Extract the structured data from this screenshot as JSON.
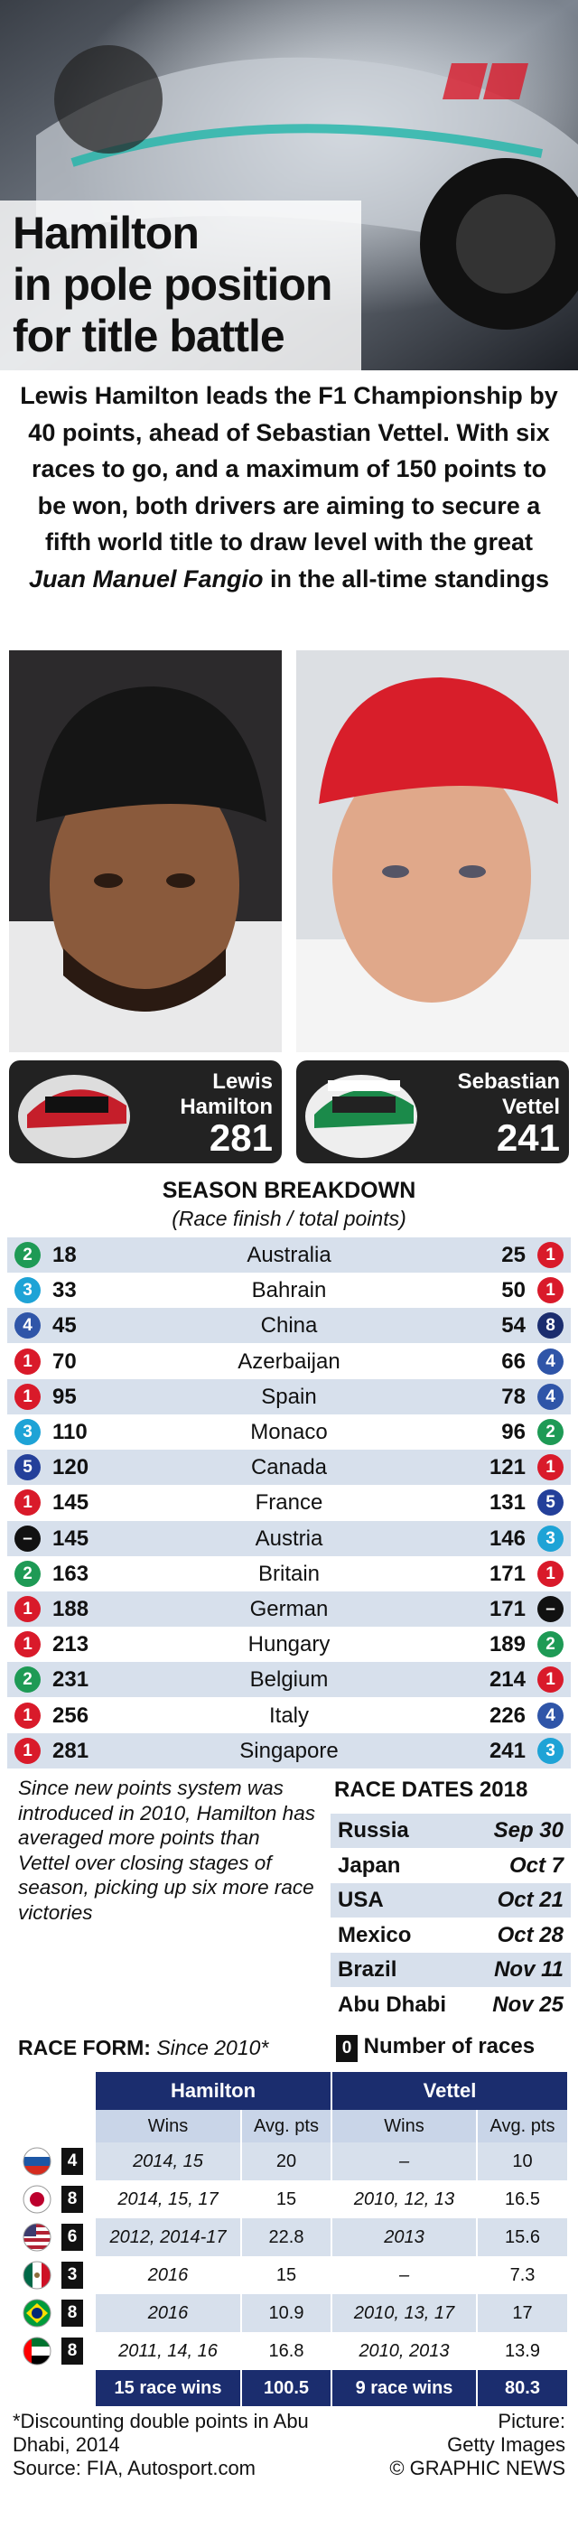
{
  "header": {
    "title_lines": [
      "Hamilton",
      "in pole position",
      "for title battle"
    ]
  },
  "intro": {
    "text": "Lewis Hamilton leads the F1 Championship by 40 points, ahead of Sebastian Vettel. With six races to go, and a maximum of 150 points to be won, both drivers are aiming to secure a fifth world title to draw level with the great",
    "emphasis": "Juan Manuel Fangio",
    "text_end": "in the all-time standings"
  },
  "drivers": [
    {
      "first": "Lewis",
      "last": "Hamilton",
      "points": 281
    },
    {
      "first": "Sebastian",
      "last": "Vettel",
      "points": 241
    }
  ],
  "season_breakdown": {
    "title": "SEASON BREAKDOWN",
    "subtitle": "(Race finish / total points)",
    "position_colors": {
      "1": "#d91a2a",
      "2": "#1e9a55",
      "3": "#1ea3d6",
      "4": "#2f55a8",
      "5": "#24409a",
      "8": "#1b2d6e",
      "–": "#111111"
    },
    "rows": [
      {
        "hamilton_finish": 2,
        "hamilton_points": 18,
        "race": "Australia",
        "vettel_points": 25,
        "vettel_finish": 1
      },
      {
        "hamilton_finish": 3,
        "hamilton_points": 33,
        "race": "Bahrain",
        "vettel_points": 50,
        "vettel_finish": 1
      },
      {
        "hamilton_finish": 4,
        "hamilton_points": 45,
        "race": "China",
        "vettel_points": 54,
        "vettel_finish": 8
      },
      {
        "hamilton_finish": 1,
        "hamilton_points": 70,
        "race": "Azerbaijan",
        "vettel_points": 66,
        "vettel_finish": 4
      },
      {
        "hamilton_finish": 1,
        "hamilton_points": 95,
        "race": "Spain",
        "vettel_points": 78,
        "vettel_finish": 4
      },
      {
        "hamilton_finish": 3,
        "hamilton_points": 110,
        "race": "Monaco",
        "vettel_points": 96,
        "vettel_finish": 2
      },
      {
        "hamilton_finish": 5,
        "hamilton_points": 120,
        "race": "Canada",
        "vettel_points": 121,
        "vettel_finish": 1
      },
      {
        "hamilton_finish": 1,
        "hamilton_points": 145,
        "race": "France",
        "vettel_points": 131,
        "vettel_finish": 5
      },
      {
        "hamilton_finish": "–",
        "hamilton_points": 145,
        "race": "Austria",
        "vettel_points": 146,
        "vettel_finish": 3
      },
      {
        "hamilton_finish": 2,
        "hamilton_points": 163,
        "race": "Britain",
        "vettel_points": 171,
        "vettel_finish": 1
      },
      {
        "hamilton_finish": 1,
        "hamilton_points": 188,
        "race": "German",
        "vettel_points": 171,
        "vettel_finish": "–"
      },
      {
        "hamilton_finish": 1,
        "hamilton_points": 213,
        "race": "Hungary",
        "vettel_points": 189,
        "vettel_finish": 2
      },
      {
        "hamilton_finish": 2,
        "hamilton_points": 231,
        "race": "Belgium",
        "vettel_points": 214,
        "vettel_finish": 1
      },
      {
        "hamilton_finish": 1,
        "hamilton_points": 256,
        "race": "Italy",
        "vettel_points": 226,
        "vettel_finish": 4
      },
      {
        "hamilton_finish": 1,
        "hamilton_points": 281,
        "race": "Singapore",
        "vettel_points": 241,
        "vettel_finish": 3
      }
    ]
  },
  "note": "Since new points system was introduced in 2010, Hamilton has averaged more points than Vettel over closing stages of season, picking up six more race victories",
  "race_dates": {
    "title": "RACE DATES 2018",
    "rows": [
      [
        "Russia",
        "Sep 30"
      ],
      [
        "Japan",
        "Oct 7"
      ],
      [
        "USA",
        "Oct 21"
      ],
      [
        "Mexico",
        "Oct 28"
      ],
      [
        "Brazil",
        "Nov 11"
      ],
      [
        "Abu Dhabi",
        "Nov 25"
      ]
    ]
  },
  "race_form": {
    "title": "RACE FORM:",
    "subtitle": "Since 2010*",
    "legend_sample": 0,
    "legend_label": "Number of races",
    "drivers": [
      "Hamilton",
      "Vettel"
    ],
    "columns": [
      "Wins",
      "Avg. pts",
      "Wins",
      "Avg. pts"
    ],
    "rows": [
      {
        "races": 4,
        "hamilton_wins": "2014, 15",
        "hamilton_avg": 20,
        "vettel_wins": "–",
        "vettel_avg": 10
      },
      {
        "races": 8,
        "hamilton_wins": "2014, 15, 17",
        "hamilton_avg": 15,
        "vettel_wins": "2010, 12, 13",
        "vettel_avg": 16.5
      },
      {
        "races": 6,
        "hamilton_wins": "2012, 2014-17",
        "hamilton_avg": 22.8,
        "vettel_wins": "2013",
        "vettel_avg": 15.6
      },
      {
        "races": 3,
        "hamilton_wins": "2016",
        "hamilton_avg": 15,
        "vettel_wins": "–",
        "vettel_avg": 7.3
      },
      {
        "races": 8,
        "hamilton_wins": "2016",
        "hamilton_avg": 10.9,
        "vettel_wins": "2010, 13, 17",
        "vettel_avg": 17
      },
      {
        "races": 8,
        "hamilton_wins": "2011, 14, 16",
        "hamilton_avg": 16.8,
        "vettel_wins": "2010, 2013",
        "vettel_avg": 13.9
      }
    ],
    "totals": {
      "hamilton_wins": "15 race wins",
      "hamilton_avg": 100.5,
      "vettel_wins": "9 race wins",
      "vettel_avg": 80.3
    }
  },
  "footer": {
    "footnote": "*Discounting double points in Abu Dhabi, 2014",
    "source": "Source: FIA, Autosport.com",
    "credit_label": "Picture:",
    "credit": "Getty Images",
    "copyright": "© GRAPHIC NEWS"
  }
}
